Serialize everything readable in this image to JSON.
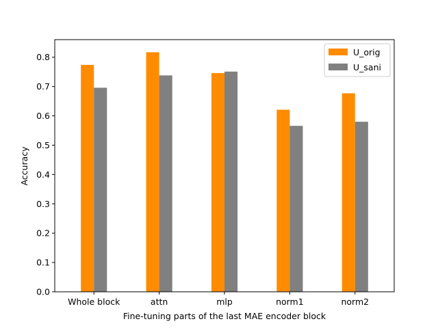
{
  "chart_data": {
    "type": "bar",
    "title": "",
    "xlabel": "Fine-tuning parts of the last MAE encoder block",
    "ylabel": "Accuracy",
    "categories": [
      "Whole block",
      "attn",
      "mlp",
      "norm1",
      "norm2"
    ],
    "series": [
      {
        "name": "U_orig",
        "color": "#ff8c00",
        "values": [
          0.774,
          0.817,
          0.746,
          0.621,
          0.677
        ]
      },
      {
        "name": "U_sani",
        "color": "#808080",
        "values": [
          0.696,
          0.738,
          0.751,
          0.566,
          0.58
        ]
      }
    ],
    "ylim": [
      0,
      0.86
    ],
    "yticks": [
      "0.0",
      "0.1",
      "0.2",
      "0.3",
      "0.4",
      "0.5",
      "0.6",
      "0.7",
      "0.8"
    ],
    "grid": false,
    "legend_position": "top-right"
  }
}
